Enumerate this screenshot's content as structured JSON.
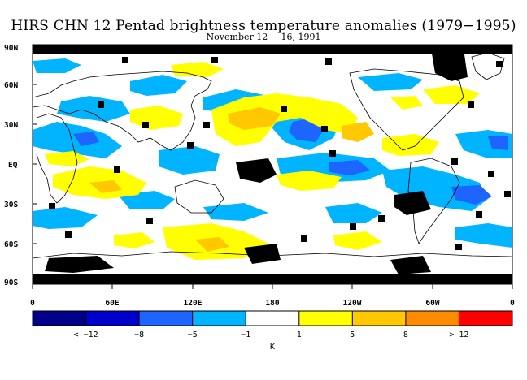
{
  "title": "HIRS CHN 12 Pentad brightness temperature anomalies (1979−1995)",
  "subtitle": "November 12 − 16, 1991",
  "lat_labels": [
    "90N",
    "60N",
    "30N",
    "EQ",
    "30S",
    "60S",
    "90S"
  ],
  "lon_labels": [
    "0",
    "60E",
    "120E",
    "180",
    "120W",
    "60W",
    "0"
  ],
  "colorbar": {
    "colors": [
      "#00008b",
      "#0000cd",
      "#1e64ff",
      "#00b4ff",
      "#ffffff",
      "#ffff00",
      "#ffc800",
      "#ff8c00",
      "#ff0000"
    ],
    "labels": [
      "< −12",
      "−8",
      "−5",
      "−1",
      "1",
      "5",
      "8",
      "> 12"
    ],
    "unit": "K"
  },
  "legend_colors": {
    "missing": "#000000",
    "coastline": "#000000"
  }
}
